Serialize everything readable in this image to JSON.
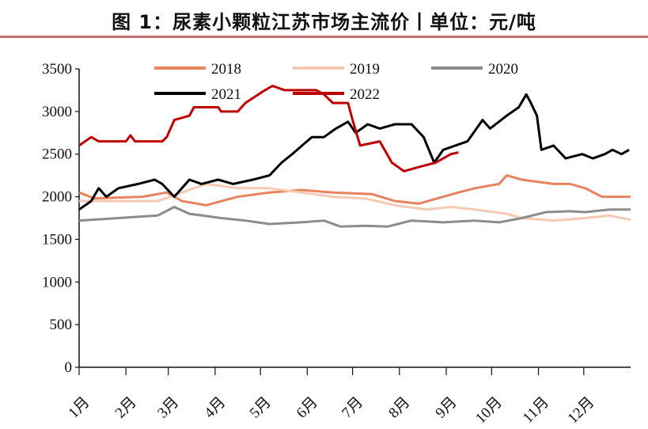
{
  "title": "图 1：尿素小颗粒江苏市场主流价丨单位：元/吨",
  "colors": {
    "rule": "#c07070"
  },
  "chart_data": {
    "type": "line",
    "title": "图 1：尿素小颗粒江苏市场主流价丨单位：元/吨",
    "xlabel": "",
    "ylabel": "",
    "x_unit": "day of year",
    "xlim": [
      0,
      365
    ],
    "ylim": [
      0,
      3500
    ],
    "yticks": [
      0,
      500,
      1000,
      1500,
      2000,
      2500,
      3000,
      3500
    ],
    "xtick_labels": [
      "1月",
      "2月",
      "3月",
      "4月",
      "5月",
      "6月",
      "7月",
      "8月",
      "9月",
      "10月",
      "11月",
      "12月"
    ],
    "xtick_days": [
      0,
      31,
      59,
      90,
      120,
      151,
      181,
      212,
      243,
      273,
      304,
      334
    ],
    "grid": false,
    "legend": "top",
    "series": [
      {
        "name": "2018",
        "color": "#e8825f",
        "points": [
          [
            0,
            2050
          ],
          [
            10,
            1980
          ],
          [
            42,
            2000
          ],
          [
            58,
            2050
          ],
          [
            68,
            1950
          ],
          [
            84,
            1900
          ],
          [
            105,
            2000
          ],
          [
            126,
            2050
          ],
          [
            147,
            2080
          ],
          [
            168,
            2050
          ],
          [
            194,
            2030
          ],
          [
            209,
            1950
          ],
          [
            225,
            1920
          ],
          [
            241,
            2000
          ],
          [
            251,
            2050
          ],
          [
            262,
            2100
          ],
          [
            278,
            2150
          ],
          [
            283,
            2250
          ],
          [
            293,
            2200
          ],
          [
            314,
            2150
          ],
          [
            325,
            2150
          ],
          [
            335,
            2100
          ],
          [
            346,
            2000
          ],
          [
            365,
            2000
          ]
        ]
      },
      {
        "name": "2019",
        "color": "#f6c9b3",
        "points": [
          [
            0,
            1950
          ],
          [
            26,
            1950
          ],
          [
            52,
            1950
          ],
          [
            68,
            2050
          ],
          [
            84,
            2150
          ],
          [
            105,
            2100
          ],
          [
            126,
            2100
          ],
          [
            147,
            2050
          ],
          [
            168,
            2000
          ],
          [
            189,
            1980
          ],
          [
            209,
            1900
          ],
          [
            230,
            1850
          ],
          [
            246,
            1880
          ],
          [
            262,
            1850
          ],
          [
            283,
            1800
          ],
          [
            293,
            1750
          ],
          [
            314,
            1720
          ],
          [
            335,
            1750
          ],
          [
            351,
            1780
          ],
          [
            365,
            1730
          ]
        ]
      },
      {
        "name": "2020",
        "color": "#8c8c8c",
        "points": [
          [
            0,
            1720
          ],
          [
            26,
            1750
          ],
          [
            52,
            1780
          ],
          [
            63,
            1880
          ],
          [
            73,
            1800
          ],
          [
            94,
            1750
          ],
          [
            110,
            1720
          ],
          [
            126,
            1680
          ],
          [
            147,
            1700
          ],
          [
            162,
            1720
          ],
          [
            173,
            1650
          ],
          [
            189,
            1660
          ],
          [
            204,
            1650
          ],
          [
            220,
            1720
          ],
          [
            241,
            1700
          ],
          [
            262,
            1720
          ],
          [
            278,
            1700
          ],
          [
            293,
            1750
          ],
          [
            309,
            1820
          ],
          [
            325,
            1830
          ],
          [
            335,
            1820
          ],
          [
            351,
            1850
          ],
          [
            365,
            1850
          ]
        ]
      },
      {
        "name": "2021",
        "color": "#000000",
        "points": [
          [
            0,
            1850
          ],
          [
            8,
            1950
          ],
          [
            13,
            2100
          ],
          [
            18,
            2000
          ],
          [
            26,
            2100
          ],
          [
            39,
            2150
          ],
          [
            50,
            2200
          ],
          [
            55,
            2150
          ],
          [
            63,
            2000
          ],
          [
            68,
            2100
          ],
          [
            73,
            2200
          ],
          [
            81,
            2150
          ],
          [
            92,
            2200
          ],
          [
            102,
            2150
          ],
          [
            115,
            2200
          ],
          [
            126,
            2250
          ],
          [
            134,
            2400
          ],
          [
            141,
            2500
          ],
          [
            154,
            2700
          ],
          [
            162,
            2700
          ],
          [
            170,
            2800
          ],
          [
            178,
            2880
          ],
          [
            183,
            2750
          ],
          [
            191,
            2850
          ],
          [
            199,
            2800
          ],
          [
            209,
            2850
          ],
          [
            220,
            2850
          ],
          [
            228,
            2700
          ],
          [
            235,
            2400
          ],
          [
            241,
            2550
          ],
          [
            249,
            2600
          ],
          [
            257,
            2650
          ],
          [
            267,
            2900
          ],
          [
            272,
            2800
          ],
          [
            283,
            2950
          ],
          [
            291,
            3050
          ],
          [
            296,
            3200
          ],
          [
            299,
            3100
          ],
          [
            303,
            2950
          ],
          [
            306,
            2550
          ],
          [
            314,
            2600
          ],
          [
            322,
            2450
          ],
          [
            333,
            2500
          ],
          [
            340,
            2450
          ],
          [
            348,
            2500
          ],
          [
            353,
            2550
          ],
          [
            359,
            2500
          ],
          [
            364,
            2550
          ]
        ]
      },
      {
        "name": "2022",
        "color": "#c00000",
        "points": [
          [
            0,
            2600
          ],
          [
            8,
            2700
          ],
          [
            13,
            2650
          ],
          [
            31,
            2650
          ],
          [
            34,
            2720
          ],
          [
            37,
            2650
          ],
          [
            55,
            2650
          ],
          [
            58,
            2700
          ],
          [
            63,
            2900
          ],
          [
            73,
            2950
          ],
          [
            76,
            3050
          ],
          [
            92,
            3050
          ],
          [
            94,
            3000
          ],
          [
            105,
            3000
          ],
          [
            110,
            3100
          ],
          [
            123,
            3250
          ],
          [
            128,
            3300
          ],
          [
            136,
            3250
          ],
          [
            157,
            3250
          ],
          [
            162,
            3200
          ],
          [
            168,
            3100
          ],
          [
            178,
            3100
          ],
          [
            181,
            2900
          ],
          [
            186,
            2600
          ],
          [
            199,
            2650
          ],
          [
            207,
            2400
          ],
          [
            215,
            2300
          ],
          [
            225,
            2350
          ],
          [
            236,
            2400
          ],
          [
            246,
            2500
          ],
          [
            251,
            2520
          ]
        ]
      }
    ]
  }
}
